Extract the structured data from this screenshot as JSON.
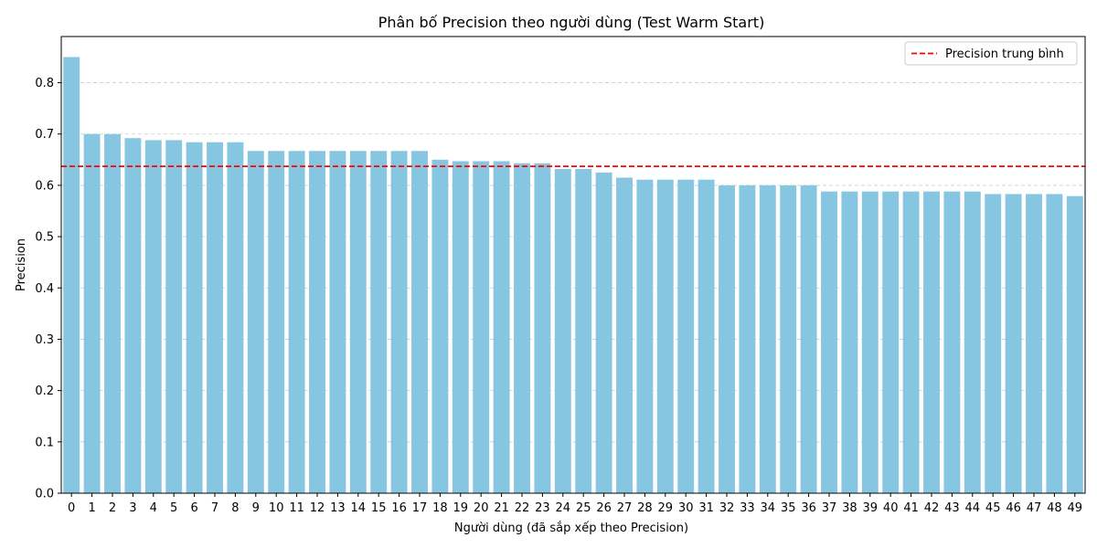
{
  "chart_data": {
    "type": "bar",
    "title": "Phân bố Precision theo người dùng (Test Warm Start)",
    "xlabel": "Người dùng (đã sắp xếp theo Precision)",
    "ylabel": "Precision",
    "ylim": [
      0,
      0.89
    ],
    "yticks": [
      0.0,
      0.1,
      0.2,
      0.3,
      0.4,
      0.5,
      0.6,
      0.7,
      0.8
    ],
    "grid": "horizontal dashed",
    "bar_color": "#87c6e0",
    "categories": [
      "0",
      "1",
      "2",
      "3",
      "4",
      "5",
      "6",
      "7",
      "8",
      "9",
      "10",
      "11",
      "12",
      "13",
      "14",
      "15",
      "16",
      "17",
      "18",
      "19",
      "20",
      "21",
      "22",
      "23",
      "24",
      "25",
      "26",
      "27",
      "28",
      "29",
      "30",
      "31",
      "32",
      "33",
      "34",
      "35",
      "36",
      "37",
      "38",
      "39",
      "40",
      "41",
      "42",
      "43",
      "44",
      "45",
      "46",
      "47",
      "48",
      "49"
    ],
    "values": [
      0.85,
      0.7,
      0.7,
      0.692,
      0.688,
      0.688,
      0.684,
      0.684,
      0.684,
      0.667,
      0.667,
      0.667,
      0.667,
      0.667,
      0.667,
      0.667,
      0.667,
      0.667,
      0.65,
      0.647,
      0.647,
      0.647,
      0.643,
      0.643,
      0.632,
      0.632,
      0.625,
      0.615,
      0.611,
      0.611,
      0.611,
      0.611,
      0.6,
      0.6,
      0.6,
      0.6,
      0.6,
      0.588,
      0.588,
      0.588,
      0.588,
      0.588,
      0.588,
      0.588,
      0.588,
      0.583,
      0.583,
      0.583,
      0.583,
      0.579
    ],
    "mean_line": {
      "label": "Precision trung bình",
      "value": 0.637,
      "color": "#ff0000"
    },
    "legend_position": "top-right"
  }
}
